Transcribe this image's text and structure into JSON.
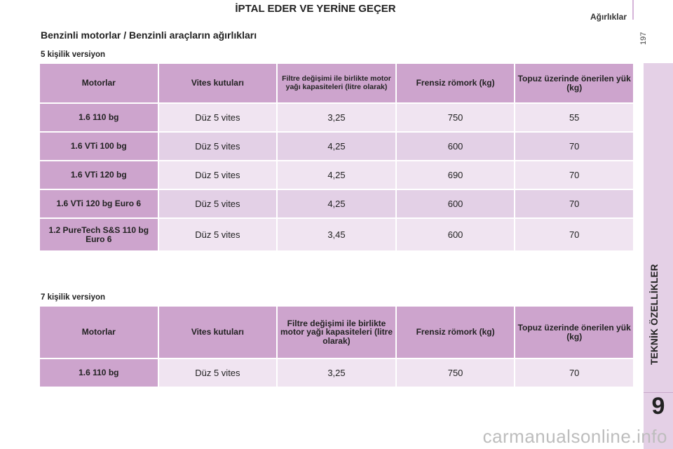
{
  "page_title": "İPTAL EDER VE YERİNE GEÇER",
  "section": "Ağırlıklar",
  "page_number": "197",
  "side_label": "TEKNİK ÖZELLİKLER",
  "chapter": "9",
  "heading": "Benzinli motorlar / Benzinli araçların ağırlıkları",
  "watermark": "carmanualsonline.info",
  "table5": {
    "caption": "5 kişilik versiyon",
    "headers": [
      "Motorlar",
      "Vites kutuları",
      "Filtre değişimi ile birlikte motor yağı kapasiteleri (litre olarak)",
      "Frensiz römork (kg)",
      "Topuz üzerinde önerilen yük (kg)"
    ],
    "rows": [
      [
        "1.6 110 bg",
        "Düz 5 vites",
        "3,25",
        "750",
        "55"
      ],
      [
        "1.6 VTi 100 bg",
        "Düz 5 vites",
        "4,25",
        "600",
        "70"
      ],
      [
        "1.6 VTi 120 bg",
        "Düz 5 vites",
        "4,25",
        "690",
        "70"
      ],
      [
        "1.6 VTi 120 bg Euro 6",
        "Düz 5 vites",
        "4,25",
        "600",
        "70"
      ],
      [
        "1.2 PureTech S&S 110 bg Euro 6",
        "Düz 5 vites",
        "3,45",
        "600",
        "70"
      ]
    ]
  },
  "table7": {
    "caption": "7 kişilik versiyon",
    "headers": [
      "Motorlar",
      "Vites kutuları",
      "Filtre değişimi ile birlikte motor yağı kapasiteleri (litre olarak)",
      "Frensiz römork (kg)",
      "Topuz üzerinde önerilen yük (kg)"
    ],
    "rows": [
      [
        "1.6 110 bg",
        "Düz 5 vites",
        "3,25",
        "750",
        "70"
      ]
    ]
  }
}
